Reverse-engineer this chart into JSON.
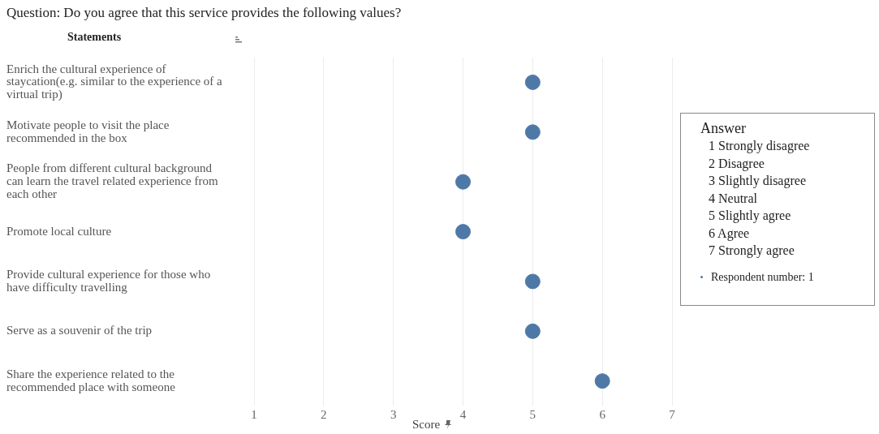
{
  "chart_data": {
    "type": "scatter",
    "title": "Question: Do you agree that this service provides the following values?",
    "ylabel": "Statements",
    "xlabel": "Score",
    "legend_title": "Answer",
    "legend": "right",
    "orientation": "horizontal",
    "grid": "x",
    "marker": "circle",
    "categories": [
      "Enrich the cultural experience of staycation(e.g. similar to the experience of a virtual trip)",
      "Motivate people to visit the place recommended in the box",
      "People from different cultural background can learn the travel related experience from each other",
      "Promote local culture",
      "Provide cultural experience for those who have difficulty travelling",
      "Serve as a souvenir of the trip",
      "Share the experience related to the recommended place with someone"
    ],
    "series": [
      {
        "name": "Respondent number: 1",
        "color": "#4e79a7",
        "values": [
          5,
          5,
          4,
          4,
          5,
          5,
          6
        ]
      }
    ],
    "xlim": [
      1,
      7
    ],
    "xticks": [
      1,
      2,
      3,
      4,
      5,
      6,
      7
    ],
    "annotations": [
      "1 Strongly disagree",
      "2 Disagree",
      "3 Slightly disagree",
      "4 Neutral",
      "5 Slightly agree",
      "6 Agree",
      "7 Strongly agree"
    ]
  }
}
